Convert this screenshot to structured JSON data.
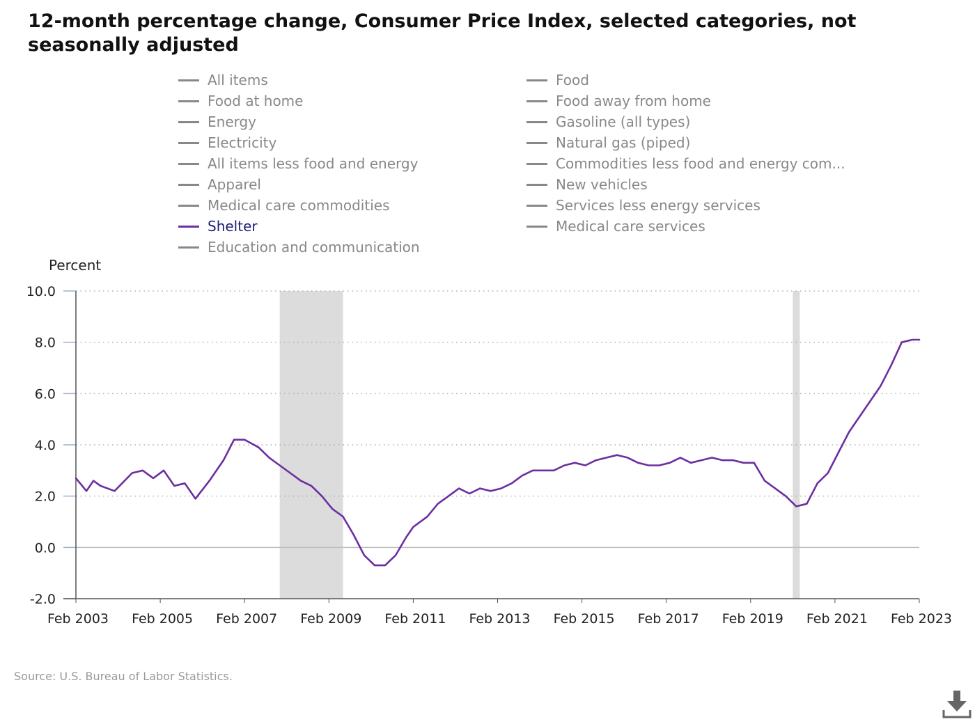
{
  "title": "12-month percentage change, Consumer Price Index, selected categories, not seasonally adjusted",
  "legend": [
    {
      "label": "All items",
      "active": false
    },
    {
      "label": "Food",
      "active": false
    },
    {
      "label": "Food at home",
      "active": false
    },
    {
      "label": "Food away from home",
      "active": false
    },
    {
      "label": "Energy",
      "active": false
    },
    {
      "label": "Gasoline (all types)",
      "active": false
    },
    {
      "label": "Electricity",
      "active": false
    },
    {
      "label": "Natural gas (piped)",
      "active": false
    },
    {
      "label": "All items less food and energy",
      "active": false
    },
    {
      "label": "Commodities less food and energy com...",
      "active": false
    },
    {
      "label": "Apparel",
      "active": false
    },
    {
      "label": "New vehicles",
      "active": false
    },
    {
      "label": "Medical care commodities",
      "active": false
    },
    {
      "label": "Services less energy services",
      "active": false
    },
    {
      "label": "Shelter",
      "active": true
    },
    {
      "label": "Medical care services",
      "active": false
    },
    {
      "label": "Education and communication",
      "active": false
    }
  ],
  "source": "Source: U.S. Bureau of Labor Statistics.",
  "download_icon": "download-icon",
  "colors": {
    "series": "#6b2fa0",
    "inactive": "#888888",
    "recession": "#dcdcdc",
    "active_label": "#1a1f77"
  },
  "chart_data": {
    "type": "line",
    "ylabel": "Percent",
    "ylim": [
      -2.0,
      10.0
    ],
    "yticks": [
      "10.0",
      "8.0",
      "6.0",
      "4.0",
      "2.0",
      "0.0",
      "-2.0"
    ],
    "xticks": [
      "Feb 2003",
      "Feb 2005",
      "Feb 2007",
      "Feb 2009",
      "Feb 2011",
      "Feb 2013",
      "Feb 2015",
      "Feb 2017",
      "Feb 2019",
      "Feb 2021",
      "Feb 2023"
    ],
    "x_range": [
      "2003-02",
      "2023-02"
    ],
    "grid": true,
    "recessions": [
      [
        "2007-12",
        "2009-06"
      ],
      [
        "2020-02",
        "2020-04"
      ]
    ],
    "series": [
      {
        "name": "Shelter",
        "x": [
          "2003-02",
          "2003-05",
          "2003-07",
          "2003-09",
          "2004-01",
          "2004-06",
          "2004-09",
          "2004-12",
          "2005-03",
          "2005-06",
          "2005-09",
          "2005-12",
          "2006-04",
          "2006-08",
          "2006-11",
          "2007-02",
          "2007-06",
          "2007-09",
          "2007-12",
          "2008-03",
          "2008-06",
          "2008-09",
          "2008-12",
          "2009-03",
          "2009-06",
          "2009-09",
          "2009-12",
          "2010-03",
          "2010-06",
          "2010-09",
          "2010-12",
          "2011-02",
          "2011-06",
          "2011-09",
          "2011-12",
          "2012-03",
          "2012-06",
          "2012-09",
          "2012-12",
          "2013-03",
          "2013-06",
          "2013-09",
          "2013-12",
          "2014-03",
          "2014-06",
          "2014-09",
          "2014-12",
          "2015-03",
          "2015-06",
          "2015-09",
          "2015-12",
          "2016-03",
          "2016-06",
          "2016-09",
          "2016-12",
          "2017-03",
          "2017-06",
          "2017-09",
          "2017-12",
          "2018-03",
          "2018-06",
          "2018-09",
          "2018-12",
          "2019-03",
          "2019-06",
          "2019-09",
          "2019-12",
          "2020-03",
          "2020-06",
          "2020-09",
          "2020-12",
          "2021-03",
          "2021-06",
          "2021-09",
          "2021-12",
          "2022-03",
          "2022-06",
          "2022-09",
          "2022-12",
          "2023-02"
        ],
        "values": [
          2.7,
          2.2,
          2.6,
          2.4,
          2.2,
          2.9,
          3.0,
          2.7,
          3.0,
          2.4,
          2.5,
          1.9,
          2.6,
          3.4,
          4.2,
          4.2,
          3.9,
          3.5,
          3.2,
          2.9,
          2.6,
          2.4,
          2.0,
          1.5,
          1.2,
          0.5,
          -0.3,
          -0.7,
          -0.7,
          -0.3,
          0.4,
          0.8,
          1.2,
          1.7,
          2.0,
          2.3,
          2.1,
          2.3,
          2.2,
          2.3,
          2.5,
          2.8,
          3.0,
          3.0,
          3.0,
          3.2,
          3.3,
          3.2,
          3.4,
          3.5,
          3.6,
          3.5,
          3.3,
          3.2,
          3.2,
          3.3,
          3.5,
          3.3,
          3.4,
          3.5,
          3.4,
          3.4,
          3.3,
          3.3,
          2.6,
          2.3,
          2.0,
          1.6,
          1.7,
          2.5,
          2.9,
          3.7,
          4.5,
          5.1,
          5.7,
          6.3,
          7.1,
          8.0,
          8.1,
          8.1
        ]
      }
    ]
  }
}
